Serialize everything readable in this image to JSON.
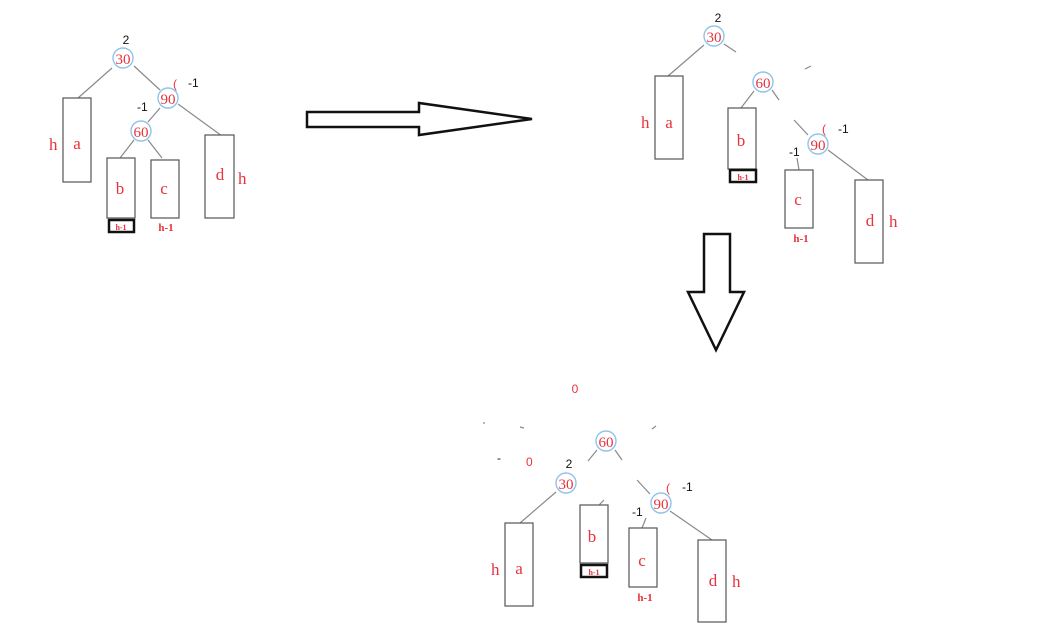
{
  "colors": {
    "label": "#e8323c",
    "node_ring": "#8fc3ea",
    "edge": "#8a8a8a",
    "ink": "#111111"
  },
  "labels": {
    "n30": "30",
    "n60": "60",
    "n90": "90",
    "a": "a",
    "b": "b",
    "c": "c",
    "d": "d",
    "h": "h",
    "h_minus_1": "h-1",
    "bf_2": "2",
    "bf_m1": "-1",
    "bf_0": "0",
    "paren": "(",
    "dash": "-"
  }
}
